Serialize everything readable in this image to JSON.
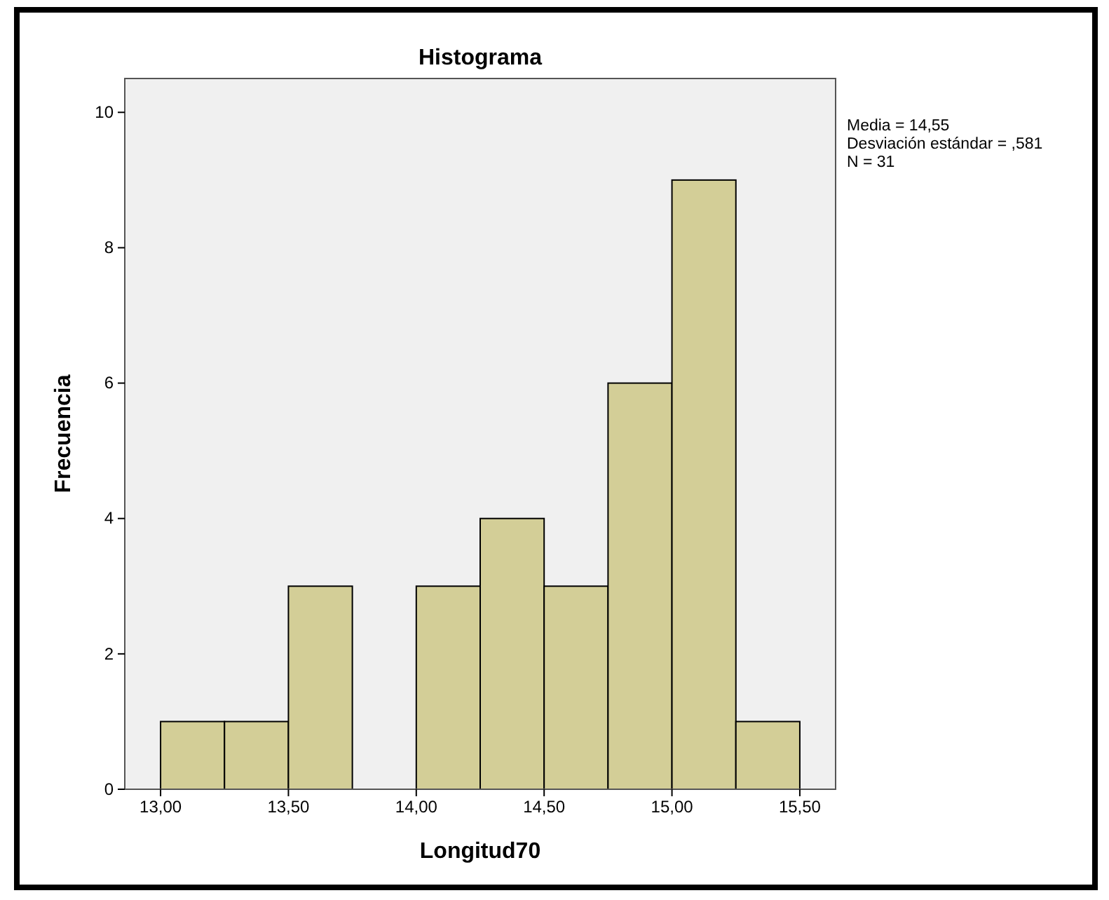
{
  "chart_data": {
    "type": "histogram",
    "title": "Histograma",
    "xlabel": "Longitud70",
    "ylabel": "Frecuencia",
    "bins": [
      13.0,
      13.25,
      13.5,
      13.75,
      14.0,
      14.25,
      14.5,
      14.75,
      15.0,
      15.25,
      15.5
    ],
    "values": [
      1,
      1,
      3,
      0,
      3,
      4,
      3,
      6,
      9,
      1
    ],
    "color": "#d3ce97",
    "xlim": [
      12.86,
      15.64
    ],
    "ylim": [
      0,
      10.5
    ],
    "xticks": [
      {
        "value": 13,
        "label": "13,00"
      },
      {
        "value": 13.5,
        "label": "13,50"
      },
      {
        "value": 14,
        "label": "14,00"
      },
      {
        "value": 14.5,
        "label": "14,50"
      },
      {
        "value": 15,
        "label": "15,00"
      },
      {
        "value": 15.5,
        "label": "15,50"
      }
    ],
    "yticks": [
      0,
      2,
      4,
      6,
      8,
      10
    ],
    "annotations": [
      "Media = 14,55",
      "Desviación estándar = ,581",
      "N = 31"
    ],
    "grid": false
  }
}
